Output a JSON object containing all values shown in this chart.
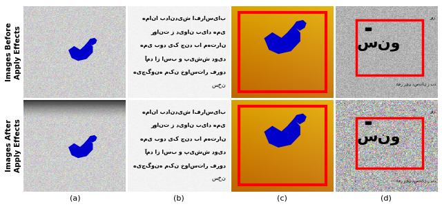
{
  "figure_width": 6.4,
  "figure_height": 3.06,
  "dpi": 100,
  "label_a": "(a)",
  "label_b": "(b)",
  "label_c": "(c)",
  "label_d": "(d)",
  "row_label_top": "Images Before\nApply Effects",
  "row_label_bottom": "Images After\nApply Effects",
  "label_fontsize": 8,
  "row_label_fontsize": 7.5,
  "background_color": "#ffffff",
  "persian_lines": [
    "همانا بداندیش افراسیاب",
    "روانت ز دیوان بیاد همی",
    "همی بود یک چند با مهتران",
    "آمد از اسب و پیشش دوید",
    "هیچگونه مکن خواستار فرود",
    "سخن"
  ]
}
